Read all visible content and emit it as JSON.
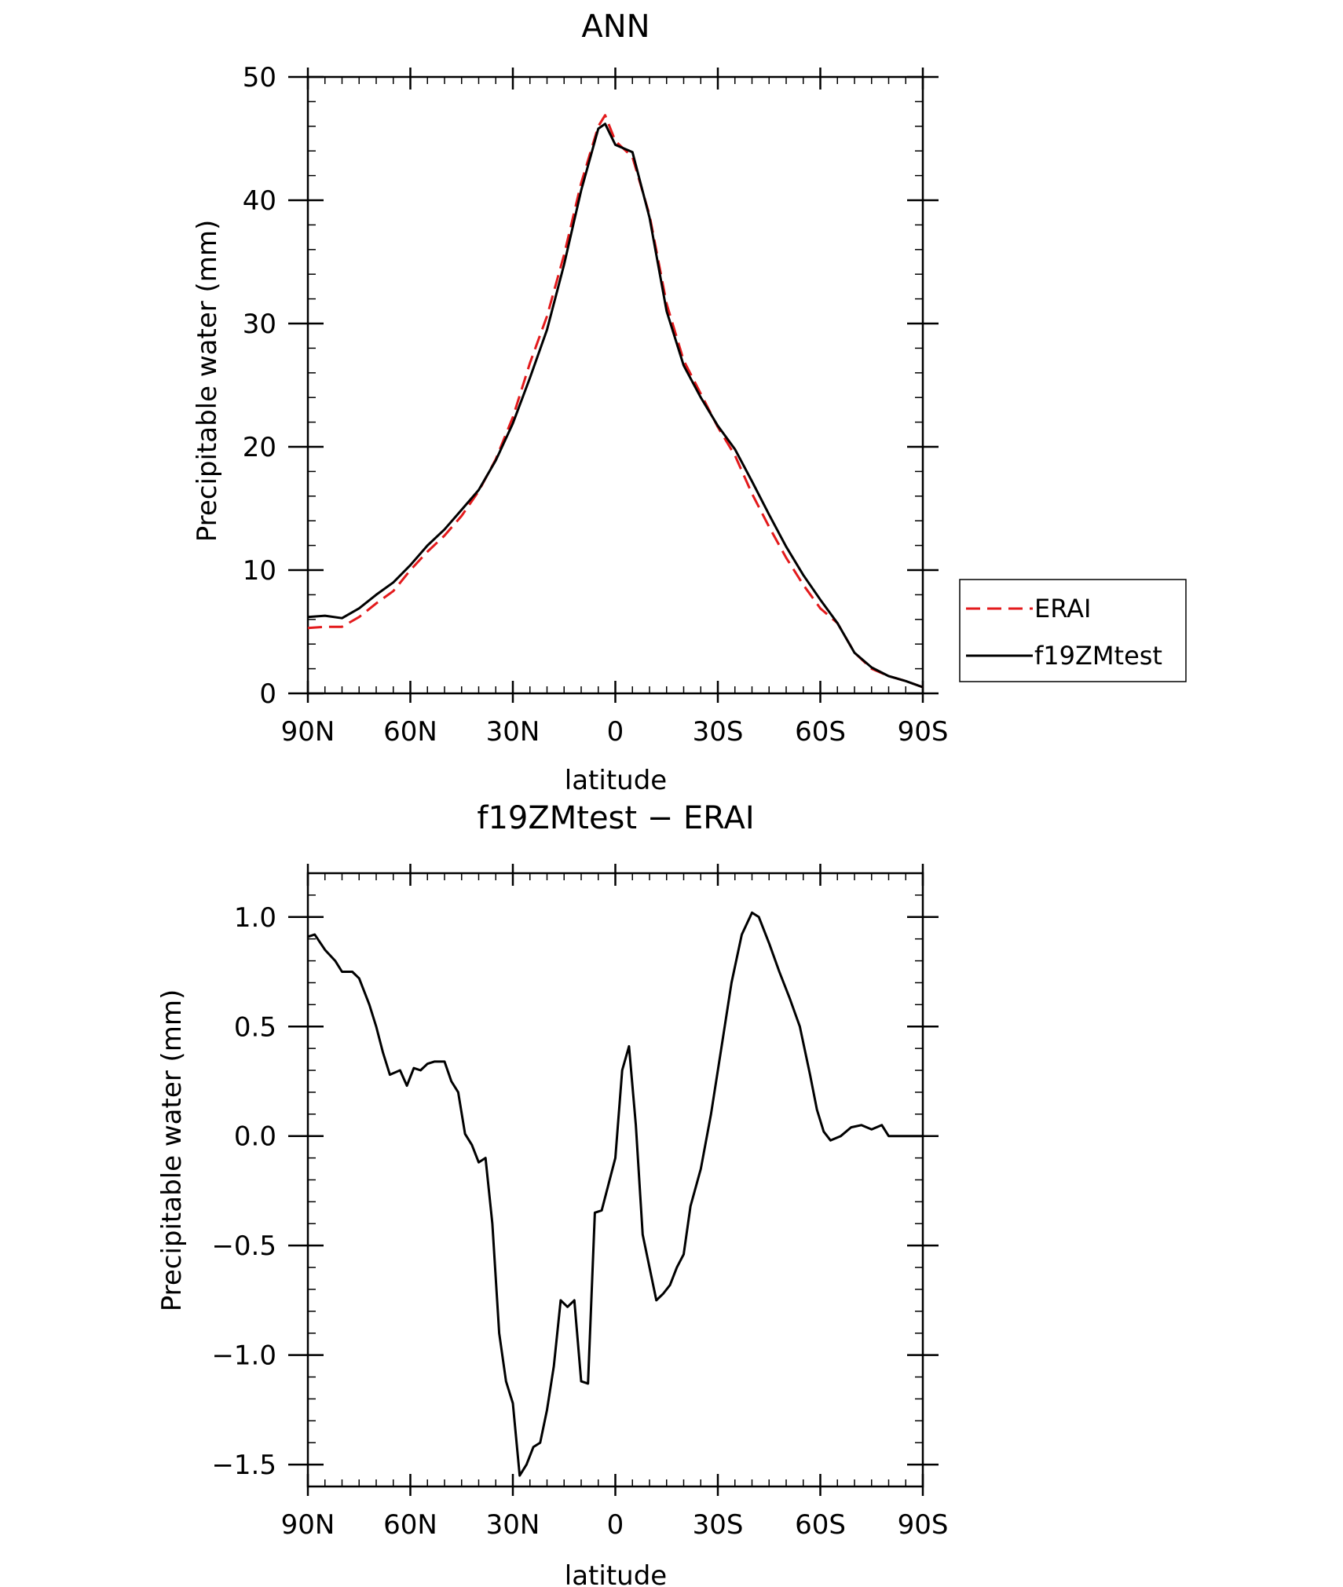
{
  "chart_data": [
    {
      "type": "line",
      "title": "ANN",
      "xlabel": "latitude",
      "ylabel": "Precipitable water (mm)",
      "xlim": [
        90,
        -90
      ],
      "ylim": [
        0,
        50
      ],
      "x_ticks": [
        90,
        60,
        30,
        0,
        -30,
        -60,
        -90
      ],
      "x_tick_labels": [
        "90N",
        "60N",
        "30N",
        "0",
        "30S",
        "60S",
        "90S"
      ],
      "y_ticks": [
        0,
        10,
        20,
        30,
        40,
        50
      ],
      "y_tick_labels": [
        "0",
        "10",
        "20",
        "30",
        "40",
        "50"
      ],
      "grid": false,
      "legend": "right, outside plot",
      "series": [
        {
          "name": "ERAI",
          "color": "#e31a1c",
          "style": "dashed",
          "points": [
            [
              90,
              5.3
            ],
            [
              85,
              5.4
            ],
            [
              80,
              5.4
            ],
            [
              75,
              6.2
            ],
            [
              70,
              7.3
            ],
            [
              65,
              8.3
            ],
            [
              60,
              10.0
            ],
            [
              55,
              11.5
            ],
            [
              50,
              12.8
            ],
            [
              45,
              14.4
            ],
            [
              40,
              16.4
            ],
            [
              35,
              19.0
            ],
            [
              30,
              22.4
            ],
            [
              25,
              26.8
            ],
            [
              20,
              30.6
            ],
            [
              15,
              35.6
            ],
            [
              10,
              41.4
            ],
            [
              5,
              46.0
            ],
            [
              3,
              46.9
            ],
            [
              0,
              44.8
            ],
            [
              -5,
              43.5
            ],
            [
              -10,
              38.8
            ],
            [
              -15,
              31.6
            ],
            [
              -20,
              27.0
            ],
            [
              -25,
              24.3
            ],
            [
              -30,
              21.6
            ],
            [
              -35,
              19.3
            ],
            [
              -40,
              16.2
            ],
            [
              -45,
              13.5
            ],
            [
              -50,
              11.0
            ],
            [
              -55,
              8.8
            ],
            [
              -60,
              6.9
            ],
            [
              -65,
              5.7
            ],
            [
              -70,
              3.3
            ],
            [
              -75,
              2.0
            ],
            [
              -80,
              1.4
            ],
            [
              -85,
              1.0
            ],
            [
              -90,
              0.5
            ]
          ]
        },
        {
          "name": "f19ZMtest",
          "color": "#000000",
          "style": "solid",
          "points": [
            [
              90,
              6.2
            ],
            [
              85,
              6.3
            ],
            [
              80,
              6.1
            ],
            [
              75,
              6.9
            ],
            [
              70,
              8.0
            ],
            [
              65,
              9.0
            ],
            [
              60,
              10.4
            ],
            [
              55,
              12.0
            ],
            [
              50,
              13.3
            ],
            [
              45,
              14.9
            ],
            [
              40,
              16.5
            ],
            [
              35,
              18.9
            ],
            [
              30,
              21.9
            ],
            [
              25,
              25.6
            ],
            [
              20,
              29.5
            ],
            [
              15,
              34.8
            ],
            [
              10,
              40.8
            ],
            [
              5,
              45.8
            ],
            [
              3,
              46.2
            ],
            [
              0,
              44.5
            ],
            [
              -5,
              43.9
            ],
            [
              -10,
              38.6
            ],
            [
              -15,
              31.0
            ],
            [
              -20,
              26.6
            ],
            [
              -25,
              24.0
            ],
            [
              -30,
              21.7
            ],
            [
              -35,
              19.8
            ],
            [
              -40,
              17.2
            ],
            [
              -45,
              14.5
            ],
            [
              -50,
              11.9
            ],
            [
              -55,
              9.6
            ],
            [
              -60,
              7.6
            ],
            [
              -65,
              5.7
            ],
            [
              -70,
              3.3
            ],
            [
              -75,
              2.1
            ],
            [
              -80,
              1.4
            ],
            [
              -85,
              1.0
            ],
            [
              -90,
              0.5
            ]
          ]
        }
      ]
    },
    {
      "type": "line",
      "title": "f19ZMtest − ERAI",
      "xlabel": "latitude",
      "ylabel": "Precipitable water (mm)",
      "xlim": [
        90,
        -90
      ],
      "ylim": [
        -1.6,
        1.2
      ],
      "x_ticks": [
        90,
        60,
        30,
        0,
        -30,
        -60,
        -90
      ],
      "x_tick_labels": [
        "90N",
        "60N",
        "30N",
        "0",
        "30S",
        "60S",
        "90S"
      ],
      "y_ticks": [
        1.0,
        0.5,
        0.0,
        -0.5,
        -1.0,
        -1.5
      ],
      "y_tick_labels": [
        "1.0",
        "0.5",
        "0.0",
        "−0.5",
        "−1.0",
        "−1.5"
      ],
      "grid": false,
      "series": [
        {
          "color": "#000000",
          "style": "solid",
          "points": [
            [
              90,
              0.91
            ],
            [
              88,
              0.92
            ],
            [
              85,
              0.85
            ],
            [
              82,
              0.8
            ],
            [
              80,
              0.75
            ],
            [
              77,
              0.75
            ],
            [
              75,
              0.72
            ],
            [
              72,
              0.6
            ],
            [
              70,
              0.5
            ],
            [
              68,
              0.38
            ],
            [
              66,
              0.28
            ],
            [
              63,
              0.3
            ],
            [
              61,
              0.23
            ],
            [
              59,
              0.31
            ],
            [
              57,
              0.3
            ],
            [
              55,
              0.33
            ],
            [
              53,
              0.34
            ],
            [
              50,
              0.34
            ],
            [
              48,
              0.25
            ],
            [
              46,
              0.2
            ],
            [
              44,
              0.01
            ],
            [
              42,
              -0.04
            ],
            [
              40,
              -0.12
            ],
            [
              38,
              -0.1
            ],
            [
              36,
              -0.4
            ],
            [
              34,
              -0.9
            ],
            [
              32,
              -1.12
            ],
            [
              30,
              -1.22
            ],
            [
              28,
              -1.55
            ],
            [
              26,
              -1.5
            ],
            [
              24,
              -1.42
            ],
            [
              22,
              -1.4
            ],
            [
              20,
              -1.25
            ],
            [
              18,
              -1.05
            ],
            [
              16,
              -0.75
            ],
            [
              14,
              -0.78
            ],
            [
              12,
              -0.75
            ],
            [
              10,
              -1.12
            ],
            [
              8,
              -1.13
            ],
            [
              6,
              -0.35
            ],
            [
              4,
              -0.34
            ],
            [
              2,
              -0.22
            ],
            [
              0,
              -0.1
            ],
            [
              -2,
              0.3
            ],
            [
              -4,
              0.41
            ],
            [
              -6,
              0.05
            ],
            [
              -8,
              -0.45
            ],
            [
              -10,
              -0.6
            ],
            [
              -12,
              -0.75
            ],
            [
              -14,
              -0.72
            ],
            [
              -16,
              -0.68
            ],
            [
              -18,
              -0.6
            ],
            [
              -20,
              -0.54
            ],
            [
              -22,
              -0.32
            ],
            [
              -25,
              -0.15
            ],
            [
              -28,
              0.1
            ],
            [
              -31,
              0.4
            ],
            [
              -34,
              0.7
            ],
            [
              -37,
              0.92
            ],
            [
              -40,
              1.02
            ],
            [
              -42,
              1.0
            ],
            [
              -45,
              0.88
            ],
            [
              -48,
              0.75
            ],
            [
              -51,
              0.63
            ],
            [
              -54,
              0.5
            ],
            [
              -57,
              0.28
            ],
            [
              -59,
              0.12
            ],
            [
              -61,
              0.02
            ],
            [
              -63,
              -0.02
            ],
            [
              -66,
              0.0
            ],
            [
              -69,
              0.04
            ],
            [
              -72,
              0.05
            ],
            [
              -75,
              0.03
            ],
            [
              -78,
              0.05
            ],
            [
              -80,
              0.0
            ],
            [
              -83,
              0.0
            ],
            [
              -86,
              0.0
            ],
            [
              -90,
              0.0
            ]
          ]
        }
      ]
    }
  ]
}
